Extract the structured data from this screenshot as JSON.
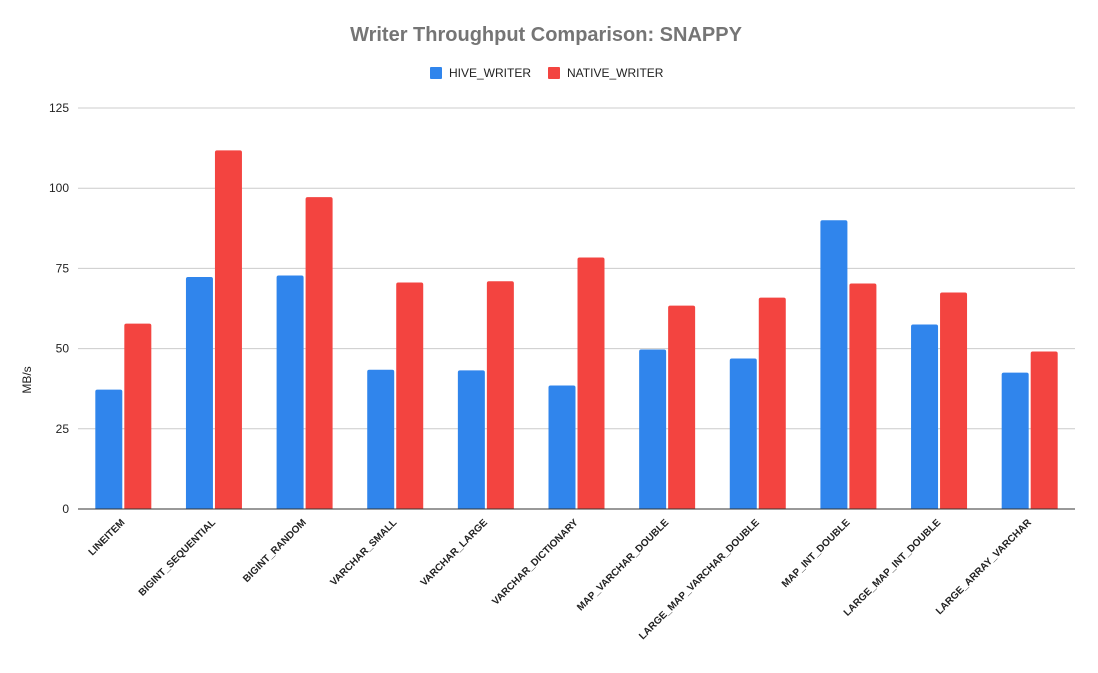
{
  "chart_data": {
    "type": "bar",
    "title": "Writer Throughput Comparison: SNAPPY",
    "xlabel": "",
    "ylabel": "MB/s",
    "ylim": [
      0,
      125
    ],
    "yticks": [
      0,
      25,
      50,
      75,
      100,
      125
    ],
    "grid": true,
    "legend_position": "top",
    "categories": [
      "LINEITEM",
      "BIGINT_SEQUENTIAL",
      "BIGINT_RANDOM",
      "VARCHAR_SMALL",
      "VARCHAR_LARGE",
      "VARCHAR_DICTIONARY",
      "MAP_VARCHAR_DOUBLE",
      "LARGE_MAP_VARCHAR_DOUBLE",
      "MAP_INT_DOUBLE",
      "LARGE_MAP_INT_DOUBLE",
      "LARGE_ARRAY_VARCHAR"
    ],
    "series": [
      {
        "name": "HIVE_WRITER",
        "color": "#3085EC",
        "values": [
          37.2,
          72.3,
          72.8,
          43.4,
          43.2,
          38.5,
          49.7,
          46.9,
          90.0,
          57.5,
          42.5
        ]
      },
      {
        "name": "NATIVE_WRITER",
        "color": "#F34440",
        "values": [
          57.8,
          111.8,
          97.2,
          70.6,
          71.0,
          78.4,
          63.4,
          65.9,
          70.3,
          67.5,
          49.1
        ]
      }
    ]
  }
}
